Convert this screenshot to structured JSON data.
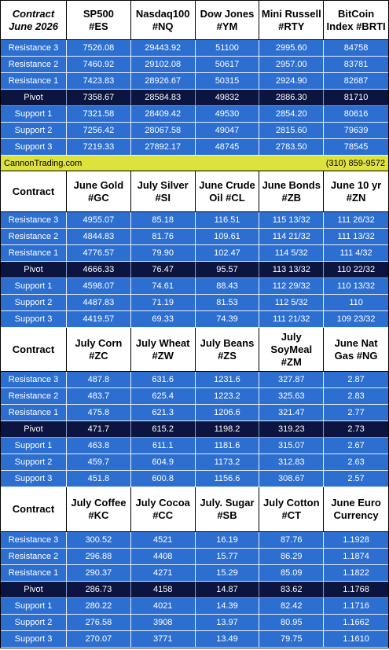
{
  "sections": [
    {
      "header": [
        "Contract\nJune 2026",
        "SP500\n#ES",
        "Nasdaq100\n#NQ",
        "Dow Jones\n#YM",
        "Mini Russell\n#RTY",
        "BitCoin\nIndex #BRTI"
      ],
      "rows": [
        {
          "label": "Resistance 3",
          "values": [
            "7526.08",
            "29443.92",
            "51100",
            "2995.60",
            "84758"
          ]
        },
        {
          "label": "Resistance 2",
          "values": [
            "7460.92",
            "29102.08",
            "50617",
            "2957.00",
            "83781"
          ]
        },
        {
          "label": "Resistance 1",
          "values": [
            "7423.83",
            "28926.67",
            "50315",
            "2924.90",
            "82687"
          ]
        },
        {
          "label": "Pivot",
          "values": [
            "7358.67",
            "28584.83",
            "49832",
            "2886.30",
            "81710"
          ]
        },
        {
          "label": "Support 1",
          "values": [
            "7321.58",
            "28409.42",
            "49530",
            "2854.20",
            "80616"
          ]
        },
        {
          "label": "Support 2",
          "values": [
            "7256.42",
            "28067.58",
            "49047",
            "2815.60",
            "79639"
          ]
        },
        {
          "label": "Support 3",
          "values": [
            "7219.33",
            "27892.17",
            "48745",
            "2783.50",
            "78545"
          ]
        }
      ]
    },
    {
      "header": [
        "Contract",
        "June Gold\n#GC",
        "July Silver\n#SI",
        "June Crude\nOil #CL",
        "June Bonds\n#ZB",
        "June 10 yr\n#ZN"
      ],
      "rows": [
        {
          "label": "Resistance 3",
          "values": [
            "4955.07",
            "85.18",
            "116.51",
            "115 13/32",
            "111 26/32"
          ]
        },
        {
          "label": "Resistance 2",
          "values": [
            "4844.83",
            "81.76",
            "109.61",
            "114 21/32",
            "111 13/32"
          ]
        },
        {
          "label": "Resistance 1",
          "values": [
            "4776.57",
            "79.90",
            "102.47",
            "114  5/32",
            "111  4/32"
          ]
        },
        {
          "label": "Pivot",
          "values": [
            "4666.33",
            "76.47",
            "95.57",
            "113 13/32",
            "110 22/32"
          ]
        },
        {
          "label": "Support 1",
          "values": [
            "4598.07",
            "74.61",
            "88.43",
            "112 29/32",
            "110 13/32"
          ]
        },
        {
          "label": "Support 2",
          "values": [
            "4487.83",
            "71.19",
            "81.53",
            "112  5/32",
            "110"
          ]
        },
        {
          "label": "Support 3",
          "values": [
            "4419.57",
            "69.33",
            "74.39",
            "111 21/32",
            "109 23/32"
          ]
        }
      ]
    },
    {
      "header": [
        "Contract",
        "July Corn\n#ZC",
        "July  Wheat\n#ZW",
        "July Beans\n#ZS",
        "July\nSoyMeal\n#ZM",
        "June Nat\nGas #NG"
      ],
      "rows": [
        {
          "label": "Resistance 3",
          "values": [
            "487.8",
            "631.6",
            "1231.6",
            "327.87",
            "2.87"
          ]
        },
        {
          "label": "Resistance 2",
          "values": [
            "483.7",
            "625.4",
            "1223.2",
            "325.63",
            "2.83"
          ]
        },
        {
          "label": "Resistance 1",
          "values": [
            "475.8",
            "621.3",
            "1206.6",
            "321.47",
            "2.77"
          ]
        },
        {
          "label": "Pivot",
          "values": [
            "471.7",
            "615.2",
            "1198.2",
            "319.23",
            "2.73"
          ]
        },
        {
          "label": "Support 1",
          "values": [
            "463.8",
            "611.1",
            "1181.6",
            "315.07",
            "2.67"
          ]
        },
        {
          "label": "Support 2",
          "values": [
            "459.7",
            "604.9",
            "1173.2",
            "312.83",
            "2.63"
          ]
        },
        {
          "label": "Support 3",
          "values": [
            "451.8",
            "600.8",
            "1156.6",
            "308.67",
            "2.57"
          ]
        }
      ]
    },
    {
      "header": [
        "Contract",
        "July Coffee\n#KC",
        "July Cocoa\n#CC",
        "July. Sugar\n#SB",
        "July Cotton\n#CT",
        "June Euro\nCurrency"
      ],
      "rows": [
        {
          "label": "Resistance 3",
          "values": [
            "300.52",
            "4521",
            "16.19",
            "87.76",
            "1.1928"
          ]
        },
        {
          "label": "Resistance 2",
          "values": [
            "296.88",
            "4408",
            "15.77",
            "86.29",
            "1.1874"
          ]
        },
        {
          "label": "Resistance 1",
          "values": [
            "290.37",
            "4271",
            "15.29",
            "85.09",
            "1.1822"
          ]
        },
        {
          "label": "Pivot",
          "values": [
            "286.73",
            "4158",
            "14.87",
            "83.62",
            "1.1768"
          ]
        },
        {
          "label": "Support 1",
          "values": [
            "280.22",
            "4021",
            "14.39",
            "82.42",
            "1.1716"
          ]
        },
        {
          "label": "Support 2",
          "values": [
            "276.58",
            "3908",
            "13.97",
            "80.95",
            "1.1662"
          ]
        },
        {
          "label": "Support 3",
          "values": [
            "270.07",
            "3771",
            "13.49",
            "79.75",
            "1.1610"
          ]
        }
      ]
    }
  ],
  "banner": {
    "site": "CannonTrading.com",
    "phone": "(310) 859-9572"
  }
}
